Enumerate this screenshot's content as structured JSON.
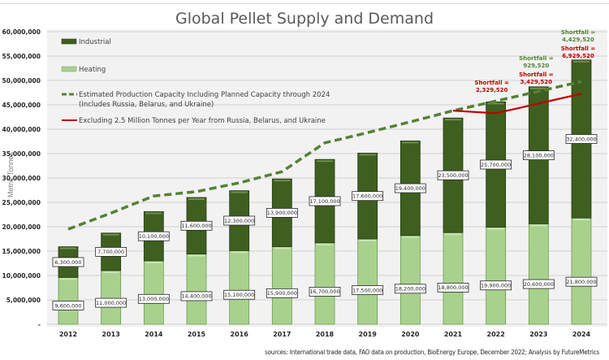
{
  "chart_data": {
    "type": "bar",
    "subtype": "stacked-bar-with-lines",
    "title": "Global Pellet Supply and Demand",
    "xlabel": "",
    "ylabel": "Metric Tonnes",
    "ylim": [
      0,
      60000000
    ],
    "yticks": [
      0,
      5000000,
      10000000,
      15000000,
      20000000,
      25000000,
      30000000,
      35000000,
      40000000,
      45000000,
      50000000,
      55000000,
      60000000
    ],
    "ytick_labels": [
      "-",
      "5,000,000",
      "10,000,000",
      "15,000,000",
      "20,000,000",
      "25,000,000",
      "30,000,000",
      "35,000,000",
      "40,000,000",
      "45,000,000",
      "50,000,000",
      "55,000,000",
      "60,000,000"
    ],
    "grid": true,
    "legend_position": "top-left",
    "categories": [
      "2012",
      "2013",
      "2014",
      "2015",
      "2016",
      "2017",
      "2018",
      "2019",
      "2020",
      "2021",
      "2022",
      "2023",
      "2024"
    ],
    "series": [
      {
        "name": "Heating",
        "kind": "bar",
        "color": "#a9d18e",
        "values": [
          9600000,
          11000000,
          13000000,
          14400000,
          15100000,
          15900000,
          16700000,
          17500000,
          18200000,
          18800000,
          19900000,
          20600000,
          21800000
        ],
        "labels": [
          "9,600,000",
          "11,000,000",
          "13,000,000",
          "14,400,000",
          "15,100,000",
          "15,900,000",
          "16,700,000",
          "17,500,000",
          "18,200,000",
          "18,800,000",
          "19,900,000",
          "20,600,000",
          "21,800,000"
        ]
      },
      {
        "name": "Industrial",
        "kind": "bar",
        "color": "#3e5f20",
        "values": [
          6300000,
          7700000,
          10100000,
          11600000,
          12300000,
          13900000,
          17100000,
          17600000,
          19400000,
          23500000,
          25700000,
          28100000,
          32400000
        ],
        "labels": [
          "6,300,000",
          "7,700,000",
          "10,100,000",
          "11,600,000",
          "12,300,000",
          "13,900,000",
          "17,100,000",
          "17,600,000",
          "19,400,000",
          "23,500,000",
          "25,700,000",
          "28,100,000",
          "32,400,000"
        ]
      },
      {
        "name": "Estimated Production Capacity Including Planned Capacity through 2024",
        "name_line2": "(Includes Russia, Belarus, and Ukraine)",
        "kind": "line-dashed",
        "color": "#548235",
        "values": [
          19500000,
          22800000,
          26300000,
          27200000,
          29000000,
          31300000,
          37200000,
          39300000,
          41500000,
          43800000,
          45770480,
          47770480,
          49770480
        ]
      },
      {
        "name": "Excluding 2.5 Million Tonnes per Year from Russia, Belarus, and Ukraine",
        "kind": "line",
        "color": "#c00000",
        "values": [
          null,
          null,
          null,
          null,
          null,
          null,
          null,
          null,
          null,
          43800000,
          43270480,
          45270480,
          47270480
        ]
      }
    ],
    "annotations": [
      {
        "category": "2022",
        "text": "Shortfall = 2,329,520",
        "color": "#c00000"
      },
      {
        "category": "2023",
        "text": "Shortfall = 929,520",
        "color": "#548235"
      },
      {
        "category": "2023",
        "text": "Shortfall = 3,429,520",
        "color": "#c00000"
      },
      {
        "category": "2024",
        "text": "Shortfall = 4,429,520",
        "color": "#548235"
      },
      {
        "category": "2024",
        "text": "Shortfall = 6,929,520",
        "color": "#c00000"
      }
    ],
    "source": "sources: International trade data, FAO data on production,  BioEnergy Europe, December 2022; Analysis by FutureMetrics"
  }
}
